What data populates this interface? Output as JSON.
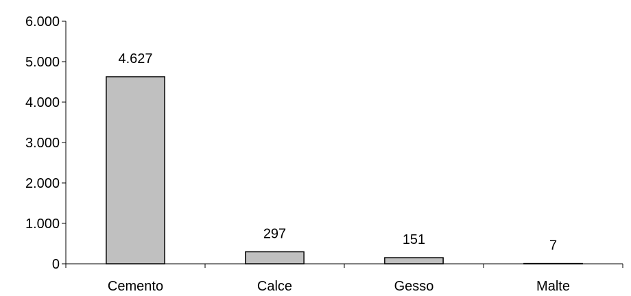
{
  "chart_data": {
    "type": "bar",
    "title": "",
    "xlabel": "",
    "ylabel": "",
    "categories": [
      "Cemento",
      "Calce",
      "Gesso",
      "Malte"
    ],
    "values": [
      4627,
      297,
      151,
      7
    ],
    "value_labels": [
      "4.627",
      "297",
      "151",
      "7"
    ],
    "ylim": [
      0,
      6000
    ],
    "yticks": [
      0,
      1000,
      2000,
      3000,
      4000,
      5000,
      6000
    ],
    "ytick_labels": [
      "0",
      "1.000",
      "2.000",
      "3.000",
      "4.000",
      "5.000",
      "6.000"
    ],
    "grid": false,
    "legend": "none",
    "bar_color": "#c0c0c0",
    "bar_edge_color": "#000000"
  }
}
